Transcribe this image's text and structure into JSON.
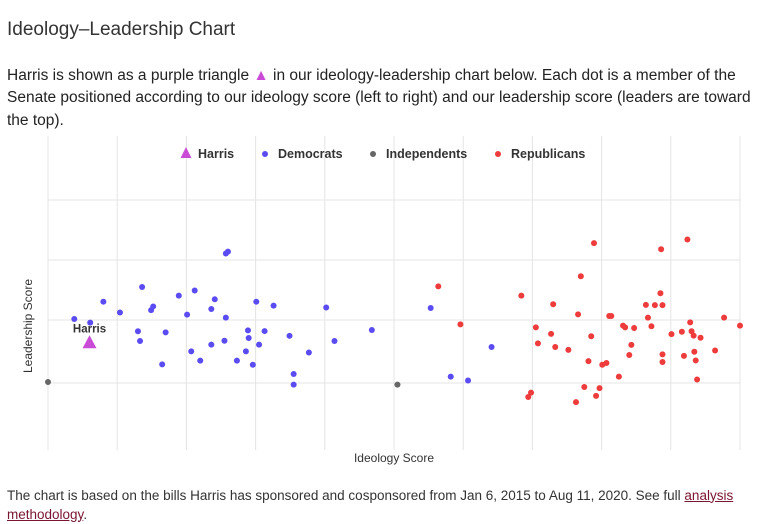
{
  "header": {
    "title": "Ideology–Leadership Chart",
    "intro_before": "Harris is shown as a purple triangle ",
    "intro_triangle": "▲",
    "intro_after": " in our ideology-leadership chart below. Each dot is a member of the Senate positioned according to our ideology score (left to right) and our leadership score (leaders are toward the top)."
  },
  "footer": {
    "text": "The chart is based on the bills Harris has sponsored and cosponsored from Jan 6, 2015 to Aug 11, 2020. See full ",
    "link_text": "analysis methodology",
    "end": "."
  },
  "colors": {
    "harris": "#c94bd6",
    "democrats": "#5a4cf2",
    "independents": "#666666",
    "republicans": "#ee3b3b"
  },
  "chart_data": {
    "type": "scatter",
    "xlabel": "Ideology Score",
    "ylabel": "Leadership Score",
    "xlim": [
      0,
      100
    ],
    "ylim": [
      0,
      100
    ],
    "grid": true,
    "legend_position": "top",
    "series": [
      {
        "name": "Harris",
        "marker": "triangle",
        "color": "#c94bd6",
        "label": "Harris",
        "points": [
          [
            6,
            36.9
          ]
        ]
      },
      {
        "name": "Democrats",
        "marker": "circle",
        "color": "#5a4cf2",
        "points": [
          [
            3.8,
            47.7
          ],
          [
            6.1,
            46.0
          ],
          [
            8,
            55.7
          ],
          [
            10.4,
            50.7
          ],
          [
            13,
            42.0
          ],
          [
            13.3,
            37.5
          ],
          [
            13.6,
            62.5
          ],
          [
            14.9,
            51.8
          ],
          [
            15.2,
            53.5
          ],
          [
            17,
            41.5
          ],
          [
            16.5,
            26.7
          ],
          [
            18.9,
            58.5
          ],
          [
            20.1,
            49.7
          ],
          [
            20.7,
            32.7
          ],
          [
            21.2,
            60.9
          ],
          [
            22,
            28.4
          ],
          [
            23.6,
            52.3
          ],
          [
            23.6,
            35.8
          ],
          [
            24.1,
            56.8
          ],
          [
            25.7,
            48.3
          ],
          [
            25.5,
            37.6
          ],
          [
            26,
            78.9
          ],
          [
            25.7,
            78.0
          ],
          [
            27.3,
            28.4
          ],
          [
            28.6,
            32.7
          ],
          [
            29,
            38.9
          ],
          [
            28.9,
            42.4
          ],
          [
            29.6,
            26.5
          ],
          [
            30.1,
            55.7
          ],
          [
            30.5,
            35.8
          ],
          [
            31.3,
            42.1
          ],
          [
            32.6,
            53.9
          ],
          [
            34.9,
            39.9
          ],
          [
            35.5,
            17.3
          ],
          [
            35.5,
            22.2
          ],
          [
            37.7,
            32.2
          ],
          [
            40.2,
            53.0
          ],
          [
            41.4,
            37.5
          ],
          [
            46.8,
            42.6
          ],
          [
            55.3,
            52.8
          ],
          [
            58.2,
            21.0
          ],
          [
            60.7,
            19.2
          ],
          [
            64.1,
            34.7
          ]
        ]
      },
      {
        "name": "Independents",
        "marker": "circle",
        "color": "#666666",
        "points": [
          [
            0,
            18.5
          ],
          [
            50.5,
            17.3
          ]
        ]
      },
      {
        "name": "Republicans",
        "marker": "circle",
        "color": "#ee3b3b",
        "points": [
          [
            56.4,
            62.8
          ],
          [
            59.6,
            45.2
          ],
          [
            68.4,
            58.5
          ],
          [
            69.4,
            11.6
          ],
          [
            69.8,
            13.6
          ],
          [
            70.5,
            43.8
          ],
          [
            70.8,
            36.4
          ],
          [
            72.7,
            40.8
          ],
          [
            73,
            54.5
          ],
          [
            73.3,
            34.7
          ],
          [
            75.2,
            33.4
          ],
          [
            76.3,
            9.2
          ],
          [
            76.6,
            49.8
          ],
          [
            77,
            67.5
          ],
          [
            77.5,
            16.2
          ],
          [
            78.1,
            28.2
          ],
          [
            78.5,
            39.7
          ],
          [
            78.9,
            82.8
          ],
          [
            79.2,
            12.1
          ],
          [
            79.7,
            15.7
          ],
          [
            80.1,
            26.5
          ],
          [
            80.7,
            27.3
          ],
          [
            81.1,
            49.1
          ],
          [
            81.4,
            49.1
          ],
          [
            82.5,
            21.0
          ],
          [
            83.1,
            44.6
          ],
          [
            83.4,
            43.8
          ],
          [
            84,
            31.0
          ],
          [
            84.3,
            35.7
          ],
          [
            84.7,
            43.5
          ],
          [
            86.4,
            54.2
          ],
          [
            86.7,
            48.3
          ],
          [
            87.2,
            44.3
          ],
          [
            87.7,
            54.1
          ],
          [
            88.5,
            59.6
          ],
          [
            88.8,
            54.1
          ],
          [
            88.6,
            80.0
          ],
          [
            88.8,
            31.3
          ],
          [
            88.8,
            27.8
          ],
          [
            90.1,
            40.7
          ],
          [
            91.6,
            41.8
          ],
          [
            91.9,
            30.6
          ],
          [
            92.4,
            84.5
          ],
          [
            92.8,
            46.1
          ],
          [
            93,
            42.0
          ],
          [
            93.3,
            40.0
          ],
          [
            93.4,
            32.5
          ],
          [
            93.6,
            28.5
          ],
          [
            93.8,
            19.7
          ],
          [
            94.3,
            39.0
          ],
          [
            96.4,
            33.1
          ],
          [
            97.7,
            48.3
          ],
          [
            100,
            44.6
          ]
        ]
      }
    ]
  }
}
